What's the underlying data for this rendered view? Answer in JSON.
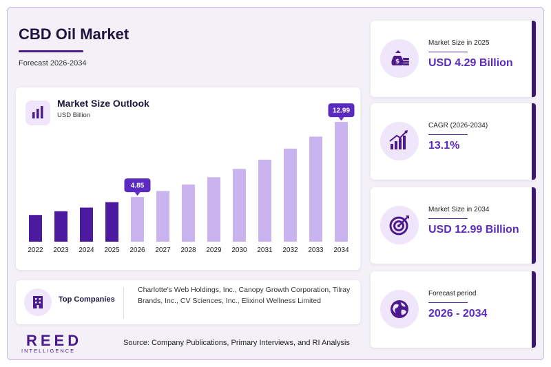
{
  "header": {
    "title": "CBD Oil Market",
    "subtitle": "Forecast 2026-2034"
  },
  "chart": {
    "title": "Market Size Outlook",
    "unit": "USD Billion"
  },
  "chart_data": {
    "type": "bar",
    "title": "Market Size Outlook",
    "ylabel": "USD Billion",
    "xlabel": "",
    "categories": [
      "2022",
      "2023",
      "2024",
      "2025",
      "2026",
      "2027",
      "2028",
      "2029",
      "2030",
      "2031",
      "2032",
      "2033",
      "2034"
    ],
    "values": [
      2.9,
      3.3,
      3.7,
      4.29,
      4.85,
      5.5,
      6.2,
      7.0,
      7.9,
      8.9,
      10.1,
      11.4,
      12.99
    ],
    "callouts": [
      {
        "category": "2026",
        "label": "4.85"
      },
      {
        "category": "2034",
        "label": "12.99"
      }
    ],
    "historical_color": "#4b1a9e",
    "forecast_color": "#c9b4f0",
    "ylim": [
      0,
      13
    ],
    "grid": false,
    "legend": "none"
  },
  "companies": {
    "label": "Top Companies",
    "list": "Charlotte's Web Holdings, Inc., Canopy Growth Corporation, Tilray Brands, Inc., CV Sciences, Inc., Elixinol Wellness Limited"
  },
  "logo": {
    "main": "REED",
    "sub": "INTELLIGENCE"
  },
  "source": "Source: Company Publications, Primary Interviews, and RI Analysis",
  "stats": [
    {
      "label": "Market Size in 2025",
      "value": "USD 4.29 Billion",
      "icon": "money-bag-icon"
    },
    {
      "label": "CAGR (2026-2034)",
      "value": "13.1%",
      "icon": "growth-chart-icon"
    },
    {
      "label": "Market Size in 2034",
      "value": "USD 12.99 Billion",
      "icon": "target-icon"
    },
    {
      "label": "Forecast period",
      "value": "2026 - 2034",
      "icon": "globe-icon"
    }
  ],
  "colors": {
    "accent": "#4b1a8c",
    "value_text": "#5b2bbf",
    "icon_bg": "#efe6fb"
  }
}
